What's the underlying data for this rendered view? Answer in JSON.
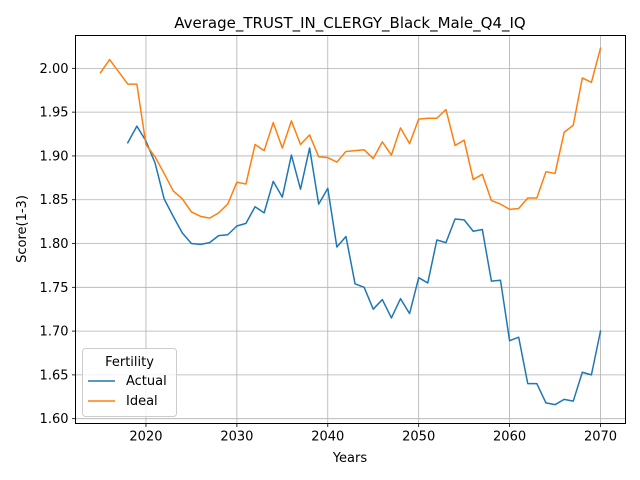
{
  "chart_data": {
    "type": "line",
    "title": "Average_TRUST_IN_CLERGY_Black_Male_Q4_IQ",
    "xlabel": "Years",
    "ylabel": "Score(1-3)",
    "xlim": [
      2012.25,
      2072.75
    ],
    "ylim": [
      1.5945,
      2.0375
    ],
    "xticks": [
      2020,
      2030,
      2040,
      2050,
      2060,
      2070
    ],
    "yticks": [
      1.6,
      1.65,
      1.7,
      1.75,
      1.8,
      1.85,
      1.9,
      1.95,
      2.0
    ],
    "ytick_labels": [
      "1.60",
      "1.65",
      "1.70",
      "1.75",
      "1.80",
      "1.85",
      "1.90",
      "1.95",
      "2.00"
    ],
    "grid": true,
    "legend": {
      "title": "Fertility",
      "placement": "lower-left"
    },
    "series": [
      {
        "name": "Actual",
        "color": "#1f77b4",
        "x": [
          2018,
          2019,
          2020,
          2021,
          2022,
          2023,
          2024,
          2025,
          2026,
          2027,
          2028,
          2029,
          2030,
          2031,
          2032,
          2033,
          2034,
          2035,
          2036,
          2037,
          2038,
          2039,
          2040,
          2041,
          2042,
          2043,
          2044,
          2045,
          2046,
          2047,
          2048,
          2049,
          2050,
          2051,
          2052,
          2053,
          2054,
          2055,
          2056,
          2057,
          2058,
          2059,
          2060,
          2061,
          2062,
          2063,
          2064,
          2065,
          2066,
          2067,
          2068,
          2069,
          2070
        ],
        "values": [
          1.915,
          1.934,
          1.917,
          1.892,
          1.851,
          1.831,
          1.812,
          1.8,
          1.799,
          1.801,
          1.809,
          1.81,
          1.82,
          1.823,
          1.842,
          1.835,
          1.871,
          1.853,
          1.901,
          1.862,
          1.909,
          1.845,
          1.863,
          1.796,
          1.808,
          1.754,
          1.75,
          1.725,
          1.736,
          1.715,
          1.737,
          1.72,
          1.761,
          1.755,
          1.804,
          1.801,
          1.828,
          1.827,
          1.814,
          1.816,
          1.757,
          1.758,
          1.689,
          1.693,
          1.64,
          1.64,
          1.618,
          1.616,
          1.622,
          1.62,
          1.653,
          1.65,
          1.7
        ]
      },
      {
        "name": "Ideal",
        "color": "#ff7f0e",
        "x": [
          2015,
          2016,
          2017,
          2018,
          2019,
          2020,
          2021,
          2022,
          2023,
          2024,
          2025,
          2026,
          2027,
          2028,
          2029,
          2030,
          2031,
          2032,
          2033,
          2034,
          2035,
          2036,
          2037,
          2038,
          2039,
          2040,
          2041,
          2042,
          2043,
          2044,
          2045,
          2046,
          2047,
          2048,
          2049,
          2050,
          2051,
          2052,
          2053,
          2054,
          2055,
          2056,
          2057,
          2058,
          2059,
          2060,
          2061,
          2062,
          2063,
          2064,
          2065,
          2066,
          2067,
          2068,
          2069,
          2070
        ],
        "values": [
          1.995,
          2.01,
          1.996,
          1.982,
          1.982,
          1.913,
          1.899,
          1.88,
          1.86,
          1.851,
          1.836,
          1.831,
          1.829,
          1.835,
          1.845,
          1.87,
          1.868,
          1.913,
          1.906,
          1.938,
          1.909,
          1.94,
          1.913,
          1.924,
          1.899,
          1.898,
          1.893,
          1.905,
          1.906,
          1.907,
          1.897,
          1.916,
          1.901,
          1.932,
          1.914,
          1.942,
          1.943,
          1.943,
          1.953,
          1.912,
          1.918,
          1.873,
          1.879,
          1.849,
          1.845,
          1.839,
          1.84,
          1.852,
          1.852,
          1.882,
          1.88,
          1.927,
          1.935,
          1.989,
          1.984,
          2.023
        ]
      }
    ]
  }
}
